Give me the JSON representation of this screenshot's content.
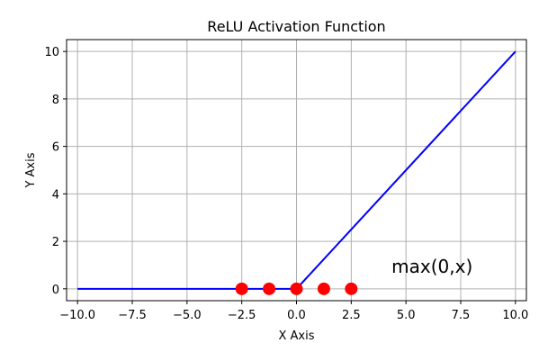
{
  "chart_data": {
    "type": "line",
    "title": "ReLU Activation Function",
    "xlabel": "X Axis",
    "ylabel": "Y Axis",
    "xlim": [
      -10.5,
      10.5
    ],
    "ylim": [
      -0.5,
      10.5
    ],
    "grid": true,
    "x_ticks": [
      -10.0,
      -7.5,
      -5.0,
      -2.5,
      0.0,
      2.5,
      5.0,
      7.5,
      10.0
    ],
    "x_tick_labels": [
      "−10.0",
      "−7.5",
      "−5.0",
      "−2.5",
      "0.0",
      "2.5",
      "5.0",
      "7.5",
      "10.0"
    ],
    "y_ticks": [
      0,
      2,
      4,
      6,
      8,
      10
    ],
    "y_tick_labels": [
      "0",
      "2",
      "4",
      "6",
      "8",
      "10"
    ],
    "series": [
      {
        "kind": "line",
        "color": "#0000ff",
        "x": [
          -10,
          0,
          10
        ],
        "y": [
          0,
          0,
          10
        ]
      },
      {
        "kind": "scatter",
        "color": "#ff0000",
        "x": [
          -2.5,
          -1.25,
          0.0,
          1.25,
          2.5
        ],
        "y": [
          0,
          0,
          0,
          0,
          0
        ]
      }
    ],
    "annotations": [
      {
        "text": "max(0,x)",
        "x": 5.0,
        "y": 0.9
      }
    ]
  }
}
